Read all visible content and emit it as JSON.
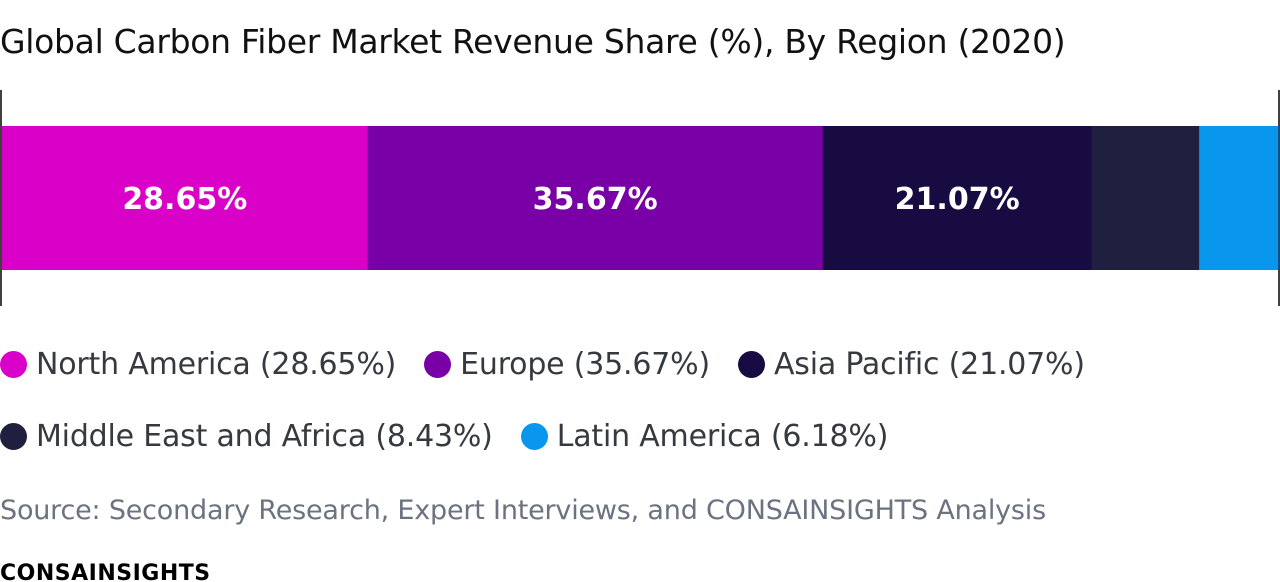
{
  "page": {
    "title": "Global Carbon Fiber Market Revenue Share (%), By Region (2020)",
    "source": "Source: Secondary Research, Expert Interviews, and CONSAINSIGHTS Analysis",
    "brand": "CONSAINSIGHTS"
  },
  "chart_data": {
    "type": "bar",
    "orientation": "horizontal-stacked",
    "title": "Global Carbon Fiber Market Revenue Share (%), By Region (2020)",
    "unit": "%",
    "xlim": [
      0,
      100
    ],
    "grid": false,
    "legend_position": "bottom",
    "series": [
      {
        "name": "North America",
        "value": 28.65,
        "label": "28.65%",
        "legend": "North America (28.65%)",
        "color": "#d900c7",
        "show_label": true
      },
      {
        "name": "Europe",
        "value": 35.67,
        "label": "35.67%",
        "legend": "Europe (35.67%)",
        "color": "#7800a6",
        "show_label": true
      },
      {
        "name": "Asia Pacific",
        "value": 21.07,
        "label": "21.07%",
        "legend": "Asia Pacific (21.07%)",
        "color": "#170b42",
        "show_label": true
      },
      {
        "name": "Middle East and Africa",
        "value": 8.43,
        "label": "8.43%",
        "legend": "Middle East and Africa (8.43%)",
        "color": "#1f1f3f",
        "show_label": false
      },
      {
        "name": "Latin America",
        "value": 6.18,
        "label": "6.18%",
        "legend": "Latin America (6.18%)",
        "color": "#0997ee",
        "show_label": false
      }
    ]
  }
}
